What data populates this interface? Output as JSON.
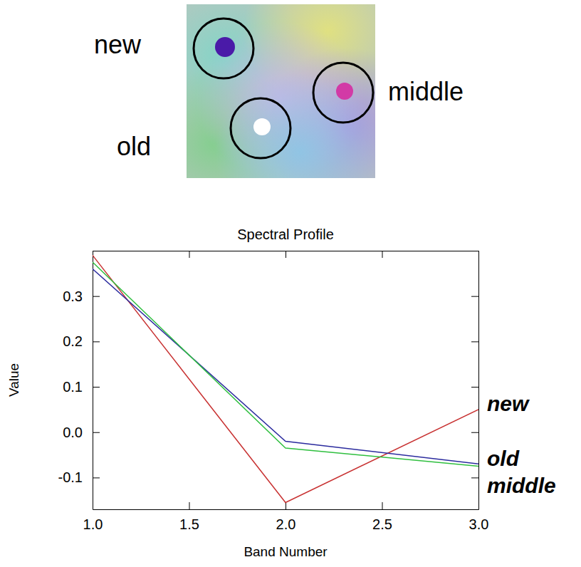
{
  "chart_data": {
    "type": "line",
    "title": "Spectral Profile",
    "x_label": "Band Number",
    "y_label": "Value",
    "annotations": [
      "new",
      "old",
      "middle"
    ],
    "x": [
      1,
      2,
      3
    ],
    "series": [
      {
        "name": "new",
        "color": "#c83232",
        "values": [
          0.39,
          -0.155,
          0.05
        ]
      },
      {
        "name": "old",
        "color": "#2b2b9e",
        "values": [
          0.36,
          -0.02,
          -0.07
        ]
      },
      {
        "name": "middle",
        "color": "#2fbf3f",
        "values": [
          0.375,
          -0.035,
          -0.075
        ]
      }
    ],
    "xlim": [
      1,
      3
    ],
    "xticks": [
      {
        "value": 1,
        "label": "1.0"
      },
      {
        "value": 1.5,
        "label": "1.5"
      },
      {
        "value": 2,
        "label": "2.0"
      },
      {
        "value": 2.5,
        "label": "2.5"
      },
      {
        "value": 3,
        "label": "3.0"
      }
    ],
    "ylim": [
      -0.17,
      0.4
    ],
    "yticks": [
      -0.1,
      {
        "value": 0,
        "label": "0.0"
      },
      0.1,
      0.2,
      0.3
    ]
  }
}
